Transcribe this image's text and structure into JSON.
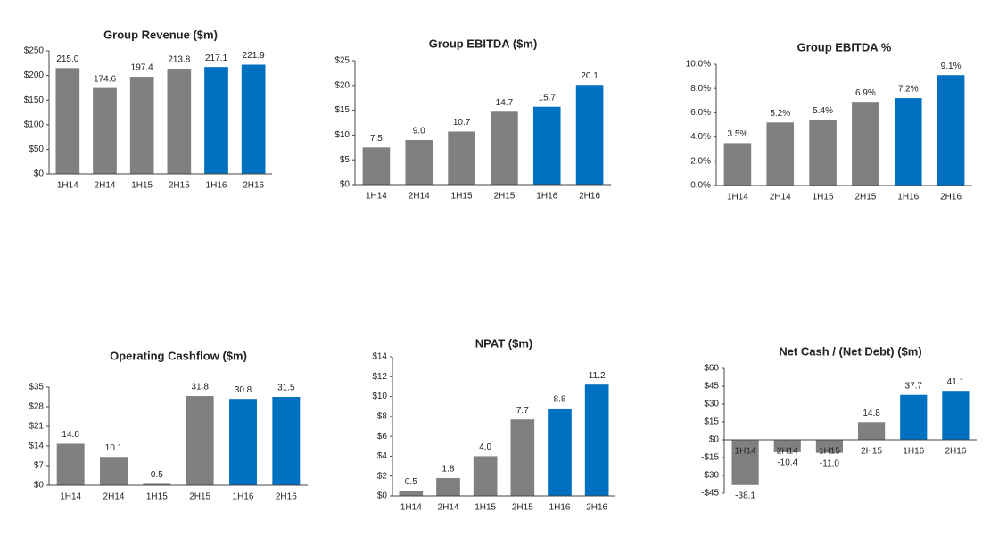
{
  "chart_data": [
    {
      "type": "bar",
      "title": "Group Revenue ($m)",
      "categories": [
        "1H14",
        "2H14",
        "1H15",
        "2H15",
        "1H16",
        "2H16"
      ],
      "values": [
        215.0,
        174.6,
        197.4,
        213.8,
        217.1,
        221.9
      ],
      "value_labels": [
        "215.0",
        "174.6",
        "197.4",
        "213.8",
        "217.1",
        "221.9"
      ],
      "colors": [
        "#808080",
        "#808080",
        "#808080",
        "#808080",
        "#0070c0",
        "#0070c0"
      ],
      "ylim": [
        0,
        250
      ],
      "yticks": [
        {
          "value": 0,
          "label": "$0"
        },
        {
          "value": 50,
          "label": "$50"
        },
        {
          "value": 100,
          "label": "$100"
        },
        {
          "value": 150,
          "label": "$150"
        },
        {
          "value": 200,
          "label": "$200"
        },
        {
          "value": 250,
          "label": "$250"
        }
      ]
    },
    {
      "type": "bar",
      "title": "Group EBITDA ($m)",
      "categories": [
        "1H14",
        "2H14",
        "1H15",
        "2H15",
        "1H16",
        "2H16"
      ],
      "values": [
        7.5,
        9.0,
        10.7,
        14.7,
        15.7,
        20.1
      ],
      "value_labels": [
        "7.5",
        "9.0",
        "10.7",
        "14.7",
        "15.7",
        "20.1"
      ],
      "colors": [
        "#808080",
        "#808080",
        "#808080",
        "#808080",
        "#0070c0",
        "#0070c0"
      ],
      "ylim": [
        0,
        25
      ],
      "yticks": [
        {
          "value": 0,
          "label": "$0"
        },
        {
          "value": 5,
          "label": "$5"
        },
        {
          "value": 10,
          "label": "$10"
        },
        {
          "value": 15,
          "label": "$15"
        },
        {
          "value": 20,
          "label": "$20"
        },
        {
          "value": 25,
          "label": "$25"
        }
      ]
    },
    {
      "type": "bar",
      "title": "Group EBITDA %",
      "categories": [
        "1H14",
        "2H14",
        "1H15",
        "2H15",
        "1H16",
        "2H16"
      ],
      "values": [
        3.5,
        5.2,
        5.4,
        6.9,
        7.2,
        9.1
      ],
      "value_labels": [
        "3.5%",
        "5.2%",
        "5.4%",
        "6.9%",
        "7.2%",
        "9.1%"
      ],
      "colors": [
        "#808080",
        "#808080",
        "#808080",
        "#808080",
        "#0070c0",
        "#0070c0"
      ],
      "ylim": [
        0,
        10
      ],
      "yticks": [
        {
          "value": 0,
          "label": "0.0%"
        },
        {
          "value": 2,
          "label": "2.0%"
        },
        {
          "value": 4,
          "label": "4.0%"
        },
        {
          "value": 6,
          "label": "6.0%"
        },
        {
          "value": 8,
          "label": "8.0%"
        },
        {
          "value": 10,
          "label": "10.0%"
        }
      ]
    },
    {
      "type": "bar",
      "title": "Operating Cashflow ($m)",
      "categories": [
        "1H14",
        "2H14",
        "1H15",
        "2H15",
        "1H16",
        "2H16"
      ],
      "values": [
        14.8,
        10.1,
        0.5,
        31.8,
        30.8,
        31.5
      ],
      "value_labels": [
        "14.8",
        "10.1",
        "0.5",
        "31.8",
        "30.8",
        "31.5"
      ],
      "colors": [
        "#808080",
        "#808080",
        "#808080",
        "#808080",
        "#0070c0",
        "#0070c0"
      ],
      "ylim": [
        0,
        35
      ],
      "yticks": [
        {
          "value": 0,
          "label": "$0"
        },
        {
          "value": 7,
          "label": "$7"
        },
        {
          "value": 14,
          "label": "$14"
        },
        {
          "value": 21,
          "label": "$21"
        },
        {
          "value": 28,
          "label": "$28"
        },
        {
          "value": 35,
          "label": "$35"
        }
      ]
    },
    {
      "type": "bar",
      "title": "NPAT ($m)",
      "categories": [
        "1H14",
        "2H14",
        "1H15",
        "2H15",
        "1H16",
        "2H16"
      ],
      "values": [
        0.5,
        1.8,
        4.0,
        7.7,
        8.8,
        11.2
      ],
      "value_labels": [
        "0.5",
        "1.8",
        "4.0",
        "7.7",
        "8.8",
        "11.2"
      ],
      "colors": [
        "#808080",
        "#808080",
        "#808080",
        "#808080",
        "#0070c0",
        "#0070c0"
      ],
      "ylim": [
        0,
        14
      ],
      "yticks": [
        {
          "value": 0,
          "label": "$0"
        },
        {
          "value": 2,
          "label": "$2"
        },
        {
          "value": 4,
          "label": "$4"
        },
        {
          "value": 6,
          "label": "$6"
        },
        {
          "value": 8,
          "label": "$8"
        },
        {
          "value": 10,
          "label": "$10"
        },
        {
          "value": 12,
          "label": "$12"
        },
        {
          "value": 14,
          "label": "$14"
        }
      ]
    },
    {
      "type": "bar",
      "title": "Net Cash / (Net Debt) ($m)",
      "categories": [
        "1H14",
        "2H14",
        "1H15",
        "2H15",
        "1H16",
        "2H16"
      ],
      "values": [
        -38.1,
        -10.4,
        -11.0,
        14.8,
        37.7,
        41.1
      ],
      "value_labels": [
        "-38.1",
        "-10.4",
        "-11.0",
        "14.8",
        "37.7",
        "41.1"
      ],
      "colors": [
        "#808080",
        "#808080",
        "#808080",
        "#808080",
        "#0070c0",
        "#0070c0"
      ],
      "ylim": [
        -45,
        60
      ],
      "yticks": [
        {
          "value": -45,
          "label": "-$45"
        },
        {
          "value": -30,
          "label": "-$30"
        },
        {
          "value": -15,
          "label": "-$15"
        },
        {
          "value": 0,
          "label": "$0"
        },
        {
          "value": 15,
          "label": "$15"
        },
        {
          "value": 30,
          "label": "$30"
        },
        {
          "value": 45,
          "label": "$45"
        },
        {
          "value": 60,
          "label": "$60"
        }
      ]
    }
  ]
}
